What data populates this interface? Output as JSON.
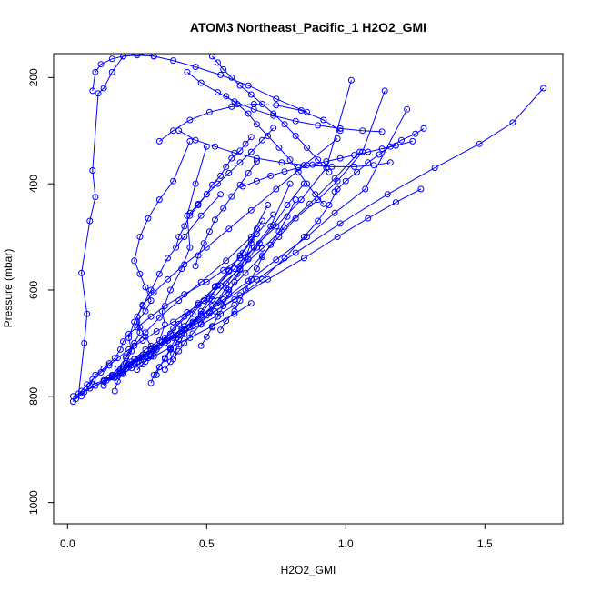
{
  "chart_data": {
    "type": "scatter",
    "title": "ATOM3 Northeast_Pacific_1 H2O2_GMI",
    "xlabel": "H2O2_GMI",
    "ylabel": "Pressure (mbar)",
    "xlim": [
      -0.05,
      1.78
    ],
    "ylim": [
      1040,
      155
    ],
    "y_reversed": true,
    "x_ticks": [
      0.0,
      0.5,
      1.0,
      1.5
    ],
    "x_tick_labels": [
      "0.0",
      "0.5",
      "1.0",
      "1.5"
    ],
    "y_ticks": [
      200,
      400,
      600,
      800,
      1000
    ],
    "y_tick_labels": [
      "200",
      "400",
      "600",
      "800",
      "1000"
    ],
    "grid": false,
    "legend": "none",
    "series_color": "#0000ff",
    "series": [
      {
        "x": [
          0.02,
          0.05,
          0.07,
          0.09,
          0.12,
          0.15,
          0.18,
          0.22,
          0.27,
          0.32,
          0.38,
          0.43,
          0.47,
          0.52
        ],
        "y": [
          810,
          790,
          778,
          768,
          755,
          742,
          728,
          712,
          695,
          678,
          660,
          642,
          628,
          612
        ]
      },
      {
        "x": [
          0.03,
          0.06,
          0.1,
          0.14,
          0.18,
          0.21,
          0.24,
          0.27,
          0.3,
          0.35,
          0.4,
          0.48,
          0.55,
          0.6
        ],
        "y": [
          805,
          792,
          780,
          770,
          760,
          748,
          737,
          726,
          715,
          700,
          685,
          665,
          645,
          628
        ]
      },
      {
        "x": [
          0.02,
          0.08,
          0.13,
          0.17,
          0.2,
          0.23,
          0.26,
          0.31,
          0.37,
          0.44,
          0.52,
          0.6,
          0.66
        ],
        "y": [
          800,
          785,
          772,
          765,
          758,
          747,
          738,
          725,
          708,
          690,
          668,
          645,
          625
        ]
      },
      {
        "x": [
          0.04,
          0.06,
          0.07,
          0.05,
          0.08,
          0.1,
          0.09,
          0.11,
          0.13,
          0.16,
          0.2,
          0.25,
          0.31
        ],
        "y": [
          795,
          700,
          645,
          568,
          470,
          425,
          375,
          230,
          220,
          190,
          160,
          155,
          160
        ]
      },
      {
        "x": [
          0.05,
          0.08,
          0.1,
          0.13,
          0.15,
          0.17,
          0.19,
          0.2,
          0.22,
          0.25,
          0.3,
          0.35,
          0.42,
          0.5,
          0.56,
          0.62,
          0.68
        ],
        "y": [
          800,
          780,
          760,
          748,
          738,
          728,
          712,
          697,
          683,
          670,
          650,
          630,
          608,
          585,
          563,
          540,
          520
        ]
      },
      {
        "x": [
          0.09,
          0.13,
          0.16,
          0.18,
          0.2,
          0.23,
          0.27,
          0.32,
          0.38,
          0.45,
          0.53,
          0.62,
          0.7,
          0.78,
          0.85,
          0.9,
          0.94,
          0.97
        ],
        "y": [
          778,
          770,
          762,
          755,
          748,
          735,
          722,
          708,
          690,
          668,
          640,
          610,
          580,
          540,
          500,
          470,
          440,
          410
        ]
      },
      {
        "x": [
          0.13,
          0.16,
          0.19,
          0.22,
          0.26,
          0.3,
          0.35,
          0.42,
          0.5,
          0.6,
          0.72,
          0.85,
          0.97,
          1.08,
          1.18,
          1.27
        ],
        "y": [
          772,
          764,
          755,
          742,
          728,
          712,
          695,
          673,
          648,
          618,
          580,
          540,
          500,
          465,
          435,
          410
        ]
      },
      {
        "x": [
          0.16,
          0.2,
          0.24,
          0.28,
          0.33,
          0.38,
          0.45,
          0.55,
          0.68,
          0.82,
          0.98,
          1.15,
          1.32,
          1.48,
          1.6,
          1.71
        ],
        "y": [
          760,
          750,
          738,
          722,
          705,
          685,
          660,
          625,
          580,
          530,
          475,
          420,
          370,
          325,
          285,
          220
        ]
      },
      {
        "x": [
          0.19,
          0.22,
          0.26,
          0.3,
          0.35,
          0.41,
          0.48,
          0.56,
          0.65,
          0.75,
          0.86,
          0.96,
          1.07,
          1.22
        ],
        "y": [
          752,
          740,
          727,
          712,
          695,
          673,
          648,
          618,
          583,
          543,
          500,
          455,
          410,
          260
        ]
      },
      {
        "x": [
          0.22,
          0.25,
          0.28,
          0.31,
          0.36,
          0.41,
          0.47,
          0.52,
          0.58,
          0.64,
          0.7,
          0.76,
          0.82,
          0.9,
          0.97,
          1.06,
          1.14
        ],
        "y": [
          745,
          735,
          725,
          712,
          695,
          676,
          655,
          630,
          600,
          568,
          535,
          500,
          465,
          430,
          395,
          340,
          225
        ]
      },
      {
        "x": [
          0.17,
          0.18,
          0.2,
          0.21,
          0.23,
          0.22,
          0.24,
          0.27,
          0.3,
          0.33,
          0.36,
          0.42,
          0.48,
          0.55
        ],
        "y": [
          790,
          772,
          755,
          738,
          715,
          690,
          660,
          630,
          600,
          570,
          540,
          500,
          460,
          420
        ]
      },
      {
        "x": [
          0.25,
          0.27,
          0.29,
          0.31,
          0.33,
          0.35,
          0.38,
          0.42,
          0.47,
          0.53,
          0.6,
          0.67,
          0.75,
          0.84,
          0.93,
          1.02
        ],
        "y": [
          750,
          740,
          728,
          718,
          705,
          690,
          672,
          650,
          625,
          595,
          560,
          520,
          480,
          430,
          370,
          205
        ]
      },
      {
        "x": [
          0.28,
          0.3,
          0.32,
          0.34,
          0.37,
          0.4,
          0.44,
          0.49,
          0.55,
          0.62,
          0.7,
          0.78,
          0.87,
          0.96,
          1.05
        ],
        "y": [
          735,
          725,
          712,
          698,
          682,
          664,
          644,
          620,
          592,
          560,
          522,
          482,
          438,
          390,
          340
        ]
      },
      {
        "x": [
          0.3,
          0.31,
          0.33,
          0.35,
          0.37,
          0.4,
          0.44,
          0.48,
          0.52,
          0.57,
          0.62,
          0.67,
          0.73,
          0.8
        ],
        "y": [
          775,
          760,
          745,
          730,
          712,
          693,
          670,
          645,
          618,
          588,
          555,
          520,
          480,
          400
        ]
      },
      {
        "x": [
          0.32,
          0.33,
          0.35,
          0.37,
          0.39,
          0.42,
          0.45,
          0.49,
          0.53,
          0.58,
          0.63,
          0.68,
          0.74
        ],
        "y": [
          760,
          745,
          728,
          710,
          690,
          668,
          645,
          620,
          593,
          563,
          530,
          495,
          458
        ]
      },
      {
        "x": [
          0.2,
          0.24,
          0.28,
          0.33,
          0.35,
          0.34,
          0.37,
          0.41,
          0.44,
          0.43,
          0.46,
          0.5
        ],
        "y": [
          745,
          730,
          712,
          695,
          665,
          640,
          600,
          560,
          520,
          460,
          400,
          330
        ]
      },
      {
        "x": [
          0.21,
          0.24,
          0.26,
          0.25,
          0.28,
          0.3,
          0.28,
          0.26,
          0.24,
          0.26,
          0.29,
          0.33,
          0.38,
          0.44
        ],
        "y": [
          725,
          700,
          680,
          660,
          640,
          620,
          595,
          570,
          545,
          500,
          465,
          430,
          395,
          320
        ]
      },
      {
        "x": [
          0.35,
          0.37,
          0.38,
          0.4,
          0.42,
          0.45,
          0.48,
          0.51,
          0.54,
          0.58,
          0.62,
          0.66,
          0.7
        ],
        "y": [
          750,
          735,
          720,
          702,
          683,
          662,
          640,
          617,
          592,
          565,
          535,
          505,
          470
        ]
      },
      {
        "x": [
          0.38,
          0.4,
          0.42,
          0.45,
          0.48,
          0.51,
          0.54,
          0.57,
          0.61,
          0.65,
          0.69,
          0.74,
          0.79,
          0.85
        ],
        "y": [
          730,
          715,
          700,
          682,
          663,
          643,
          620,
          596,
          570,
          542,
          512,
          478,
          440,
          400
        ]
      },
      {
        "x": [
          0.13,
          0.15,
          0.18,
          0.21,
          0.24,
          0.28,
          0.33,
          0.4,
          0.48,
          0.57,
          0.66,
          0.72
        ],
        "y": [
          780,
          765,
          748,
          728,
          705,
          680,
          652,
          620,
          585,
          545,
          500,
          440
        ]
      },
      {
        "x": [
          0.48,
          0.5,
          0.52,
          0.54,
          0.56,
          0.58,
          0.6,
          0.62,
          0.64,
          0.66,
          0.68
        ],
        "y": [
          705,
          688,
          670,
          650,
          630,
          608,
          585,
          562,
          538,
          512,
          485
        ]
      },
      {
        "x": [
          0.55,
          0.57,
          0.6,
          0.62,
          0.64,
          0.66,
          0.68,
          0.7,
          0.73,
          0.76,
          0.79,
          0.82
        ],
        "y": [
          675,
          658,
          640,
          620,
          600,
          580,
          560,
          538,
          515,
          490,
          462,
          430
        ]
      },
      {
        "x": [
          0.3,
          0.28,
          0.26,
          0.25,
          0.27,
          0.31,
          0.36,
          0.42,
          0.5,
          0.58,
          0.66,
          0.75,
          0.85,
          0.97
        ],
        "y": [
          705,
          688,
          670,
          650,
          628,
          605,
          580,
          552,
          520,
          485,
          450,
          410,
          365,
          315
        ]
      },
      {
        "x": [
          0.09,
          0.1,
          0.12,
          0.16,
          0.2,
          0.25,
          0.31,
          0.38,
          0.46,
          0.55,
          0.65,
          0.75,
          0.86
        ],
        "y": [
          225,
          190,
          175,
          165,
          160,
          158,
          160,
          168,
          180,
          195,
          215,
          240,
          265
        ]
      },
      {
        "x": [
          0.33,
          0.38,
          0.44,
          0.51,
          0.59,
          0.67,
          0.75,
          0.84,
          0.92,
          0.98
        ],
        "y": [
          320,
          300,
          280,
          265,
          255,
          250,
          252,
          262,
          280,
          300
        ]
      },
      {
        "x": [
          0.4,
          0.46,
          0.53,
          0.6,
          0.68,
          0.77,
          0.86,
          0.95,
          1.03,
          1.1,
          1.16
        ],
        "y": [
          300,
          318,
          330,
          342,
          352,
          360,
          365,
          368,
          368,
          365,
          360
        ]
      },
      {
        "x": [
          0.43,
          0.48,
          0.54,
          0.6,
          0.67,
          0.74,
          0.82,
          0.9,
          0.98,
          1.06,
          1.13
        ],
        "y": [
          190,
          210,
          228,
          245,
          260,
          272,
          282,
          290,
          296,
          300,
          302
        ]
      },
      {
        "x": [
          0.63,
          0.68,
          0.73,
          0.78,
          0.83,
          0.88,
          0.93,
          0.98,
          1.03,
          1.08,
          1.13,
          1.18,
          1.24
        ],
        "y": [
          405,
          395,
          385,
          377,
          370,
          364,
          358,
          352,
          346,
          340,
          334,
          328,
          320
        ]
      },
      {
        "x": [
          0.57,
          0.61,
          0.65,
          0.68,
          0.72,
          0.76,
          0.8,
          0.83,
          0.86,
          0.89,
          0.92
        ],
        "y": [
          235,
          250,
          268,
          288,
          310,
          332,
          355,
          378,
          400,
          420,
          438
        ]
      },
      {
        "x": [
          0.52,
          0.54,
          0.56,
          0.59,
          0.62,
          0.66,
          0.7,
          0.74,
          0.78,
          0.82,
          0.86,
          0.9,
          0.94
        ],
        "y": [
          160,
          172,
          185,
          200,
          215,
          232,
          250,
          268,
          288,
          310,
          332,
          355,
          378
        ]
      },
      {
        "x": [
          0.44,
          0.47,
          0.5,
          0.52,
          0.55,
          0.57,
          0.59,
          0.62,
          0.64,
          0.66
        ],
        "y": [
          455,
          438,
          420,
          402,
          385,
          368,
          352,
          338,
          325,
          312
        ]
      },
      {
        "x": [
          0.39,
          0.4,
          0.42,
          0.44,
          0.47,
          0.5,
          0.54,
          0.58,
          0.62,
          0.66,
          0.7,
          0.74
        ],
        "y": [
          520,
          500,
          480,
          460,
          440,
          420,
          400,
          380,
          360,
          340,
          318,
          295
        ]
      },
      {
        "x": [
          0.46,
          0.47,
          0.49,
          0.51,
          0.53,
          0.56,
          0.59,
          0.62,
          0.65,
          0.68
        ],
        "y": [
          555,
          535,
          512,
          490,
          468,
          446,
          424,
          402,
          380,
          358
        ]
      },
      {
        "x": [
          0.96,
          1.0,
          1.04,
          1.08,
          1.12,
          1.16,
          1.2,
          1.25,
          1.28
        ],
        "y": [
          415,
          395,
          378,
          360,
          345,
          330,
          318,
          306,
          296
        ]
      }
    ]
  }
}
